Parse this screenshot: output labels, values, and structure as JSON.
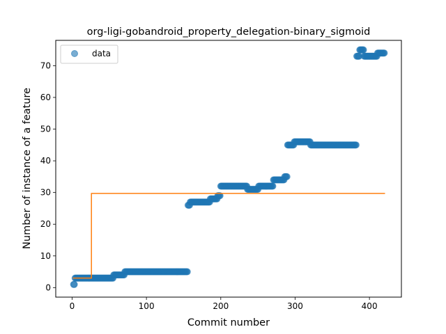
{
  "chart_data": {
    "type": "scatter",
    "title": "org-ligi-gobandroid_property_delegation-binary_sigmoid",
    "xlabel": "Commit number",
    "ylabel": "Number of instance of a feature",
    "xlim": [
      -22,
      443
    ],
    "ylim": [
      -3,
      78
    ],
    "xticks": [
      0,
      100,
      200,
      300,
      400
    ],
    "yticks": [
      0,
      10,
      20,
      30,
      40,
      50,
      60,
      70
    ],
    "grid": false,
    "legend": {
      "position": "top-left",
      "entries": [
        "data"
      ]
    },
    "colors": {
      "data": "#1f77b4",
      "fit": "#ff7f0e"
    },
    "series": [
      {
        "name": "data",
        "kind": "scatter",
        "segments": [
          {
            "x_start": 2,
            "x_end": 3,
            "y": 1
          },
          {
            "x_start": 4,
            "x_end": 49,
            "y": 3
          },
          {
            "x_start": 50,
            "x_end": 55,
            "y": 3
          },
          {
            "x_start": 56,
            "x_end": 70,
            "y": 4
          },
          {
            "x_start": 71,
            "x_end": 155,
            "y": 5
          },
          {
            "x_start": 156,
            "x_end": 158,
            "y": 26
          },
          {
            "x_start": 159,
            "x_end": 185,
            "y": 27
          },
          {
            "x_start": 186,
            "x_end": 195,
            "y": 28
          },
          {
            "x_start": 196,
            "x_end": 199,
            "y": 29
          },
          {
            "x_start": 200,
            "x_end": 235,
            "y": 32
          },
          {
            "x_start": 236,
            "x_end": 250,
            "y": 31
          },
          {
            "x_start": 251,
            "x_end": 270,
            "y": 32
          },
          {
            "x_start": 271,
            "x_end": 285,
            "y": 34
          },
          {
            "x_start": 286,
            "x_end": 289,
            "y": 35
          },
          {
            "x_start": 290,
            "x_end": 298,
            "y": 45
          },
          {
            "x_start": 299,
            "x_end": 320,
            "y": 46
          },
          {
            "x_start": 321,
            "x_end": 382,
            "y": 45
          },
          {
            "x_start": 383,
            "x_end": 386,
            "y": 73
          },
          {
            "x_start": 387,
            "x_end": 392,
            "y": 75
          },
          {
            "x_start": 393,
            "x_end": 410,
            "y": 73
          },
          {
            "x_start": 411,
            "x_end": 420,
            "y": 74
          }
        ]
      },
      {
        "name": "fit",
        "kind": "line",
        "x": [
          1,
          26,
          26,
          421
        ],
        "y": [
          3,
          3,
          29.7,
          29.7
        ]
      }
    ]
  }
}
